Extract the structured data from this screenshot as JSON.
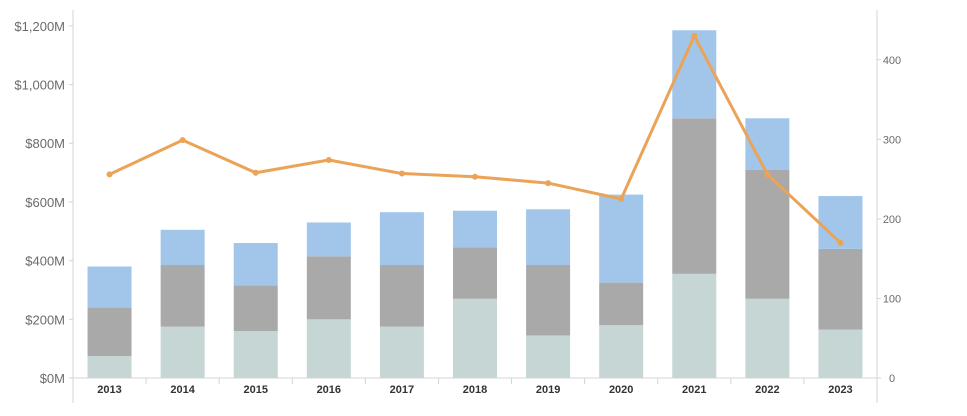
{
  "chart_data": {
    "type": "bar",
    "subtype": "stacked bar with line on secondary axis",
    "title": "",
    "categories": [
      "2013",
      "2014",
      "2015",
      "2016",
      "2017",
      "2018",
      "2019",
      "2020",
      "2021",
      "2022",
      "2023"
    ],
    "left_axis": {
      "ylim": [
        0,
        1220
      ],
      "ticks": [
        0,
        200,
        400,
        600,
        800,
        1000,
        1200
      ],
      "tick_labels": [
        "$0M",
        "$200M",
        "$400M",
        "$600M",
        "$800M",
        "$1,000M",
        "$1,200M"
      ]
    },
    "right_axis": {
      "ylim": [
        0,
        450
      ],
      "ticks": [
        0,
        100,
        200,
        300,
        400
      ],
      "tick_labels": [
        "0",
        "100",
        "200",
        "300",
        "400"
      ]
    },
    "series": [
      {
        "kind": "bar",
        "stack": "bottom",
        "color": "#c5d6d4",
        "values": [
          75,
          175,
          160,
          200,
          175,
          270,
          145,
          180,
          355,
          270,
          165
        ]
      },
      {
        "kind": "bar",
        "stack": "middle",
        "color": "#a9a9a9",
        "values": [
          165,
          210,
          155,
          215,
          210,
          175,
          240,
          145,
          530,
          440,
          275
        ]
      },
      {
        "kind": "bar",
        "stack": "top",
        "color": "#a2c5ea",
        "values": [
          140,
          120,
          145,
          115,
          180,
          125,
          190,
          300,
          300,
          175,
          180
        ]
      },
      {
        "kind": "line",
        "axis": "right",
        "color": "#eba358",
        "values": [
          256,
          299,
          258,
          274,
          257,
          253,
          245,
          225,
          430,
          256,
          170
        ]
      }
    ],
    "grid": false,
    "legend": "none"
  }
}
